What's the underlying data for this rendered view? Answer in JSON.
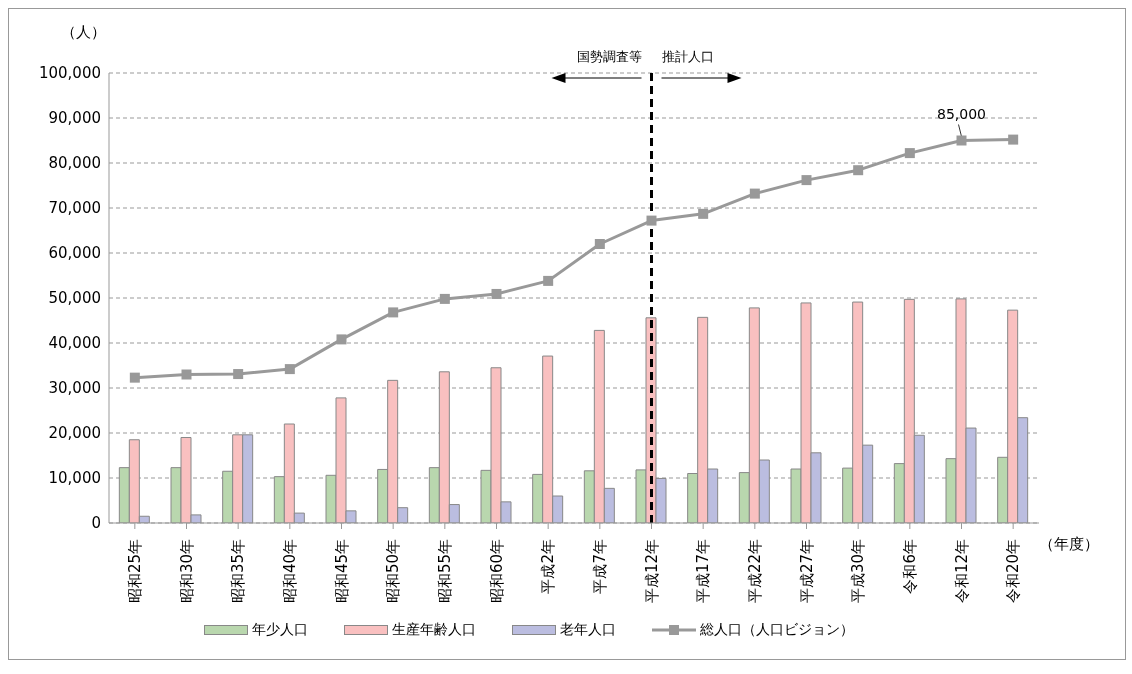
{
  "chart_data": {
    "type": "bar",
    "ylabel": "（人）",
    "xlabel": "（年度）",
    "categories": [
      "昭和25年",
      "昭和30年",
      "昭和35年",
      "昭和40年",
      "昭和45年",
      "昭和50年",
      "昭和55年",
      "昭和60年",
      "平成2年",
      "平成7年",
      "平成12年",
      "平成17年",
      "平成22年",
      "平成27年",
      "平成30年",
      "令和6年",
      "令和12年",
      "令和20年"
    ],
    "series": [
      {
        "name": "年少人口",
        "color": "#b9d7ae",
        "values": [
          12300,
          12300,
          11500,
          10300,
          10600,
          11900,
          12300,
          11700,
          10800,
          11600,
          11800,
          11000,
          11200,
          12000,
          12200,
          13200,
          14300,
          14600
        ]
      },
      {
        "name": "生産年齢人口",
        "color": "#f9c0c0",
        "values": [
          18500,
          19000,
          19600,
          22000,
          27800,
          31700,
          33600,
          34500,
          37100,
          42800,
          45600,
          45700,
          47800,
          48900,
          49100,
          49700,
          49800,
          47300
        ]
      },
      {
        "name": "老年人口",
        "color": "#bbbde0",
        "values": [
          1500,
          1800,
          19600,
          2200,
          2700,
          3400,
          4100,
          4700,
          6000,
          7700,
          9900,
          12000,
          14000,
          15600,
          17300,
          19500,
          21100,
          23400
        ]
      },
      {
        "name": "総人口（人口ビジョン）",
        "type": "line",
        "color": "#999999",
        "marker": "square",
        "values": [
          32300,
          33000,
          33100,
          34200,
          40800,
          46800,
          49800,
          50900,
          53800,
          62000,
          67200,
          68700,
          73200,
          76200,
          78400,
          82200,
          85000,
          85200
        ]
      }
    ],
    "ylim": [
      0,
      100000
    ],
    "yticks": [
      0,
      {
        "value": 10000,
        "label": "10,000"
      },
      {
        "value": 20000,
        "label": "20,000"
      },
      {
        "value": 30000,
        "label": "30,000"
      },
      {
        "value": 40000,
        "label": "40,000"
      },
      {
        "value": 50000,
        "label": "50,000"
      },
      {
        "value": 60000,
        "label": "60,000"
      },
      {
        "value": 70000,
        "label": "70,000"
      },
      {
        "value": 80000,
        "label": "80,000"
      },
      {
        "value": 90000,
        "label": "90,000"
      },
      {
        "value": 100000,
        "label": "100,000"
      }
    ],
    "grid": "y",
    "legend": "bottom",
    "ref_lines": [
      {
        "axis": "x",
        "value": "平成12年",
        "color": "#000000",
        "line_style": "dashed"
      }
    ],
    "annotations": [
      "国勢調査等",
      "推計人口",
      {
        "text": "85,000",
        "x": "令和12年",
        "y": 85000
      }
    ]
  }
}
